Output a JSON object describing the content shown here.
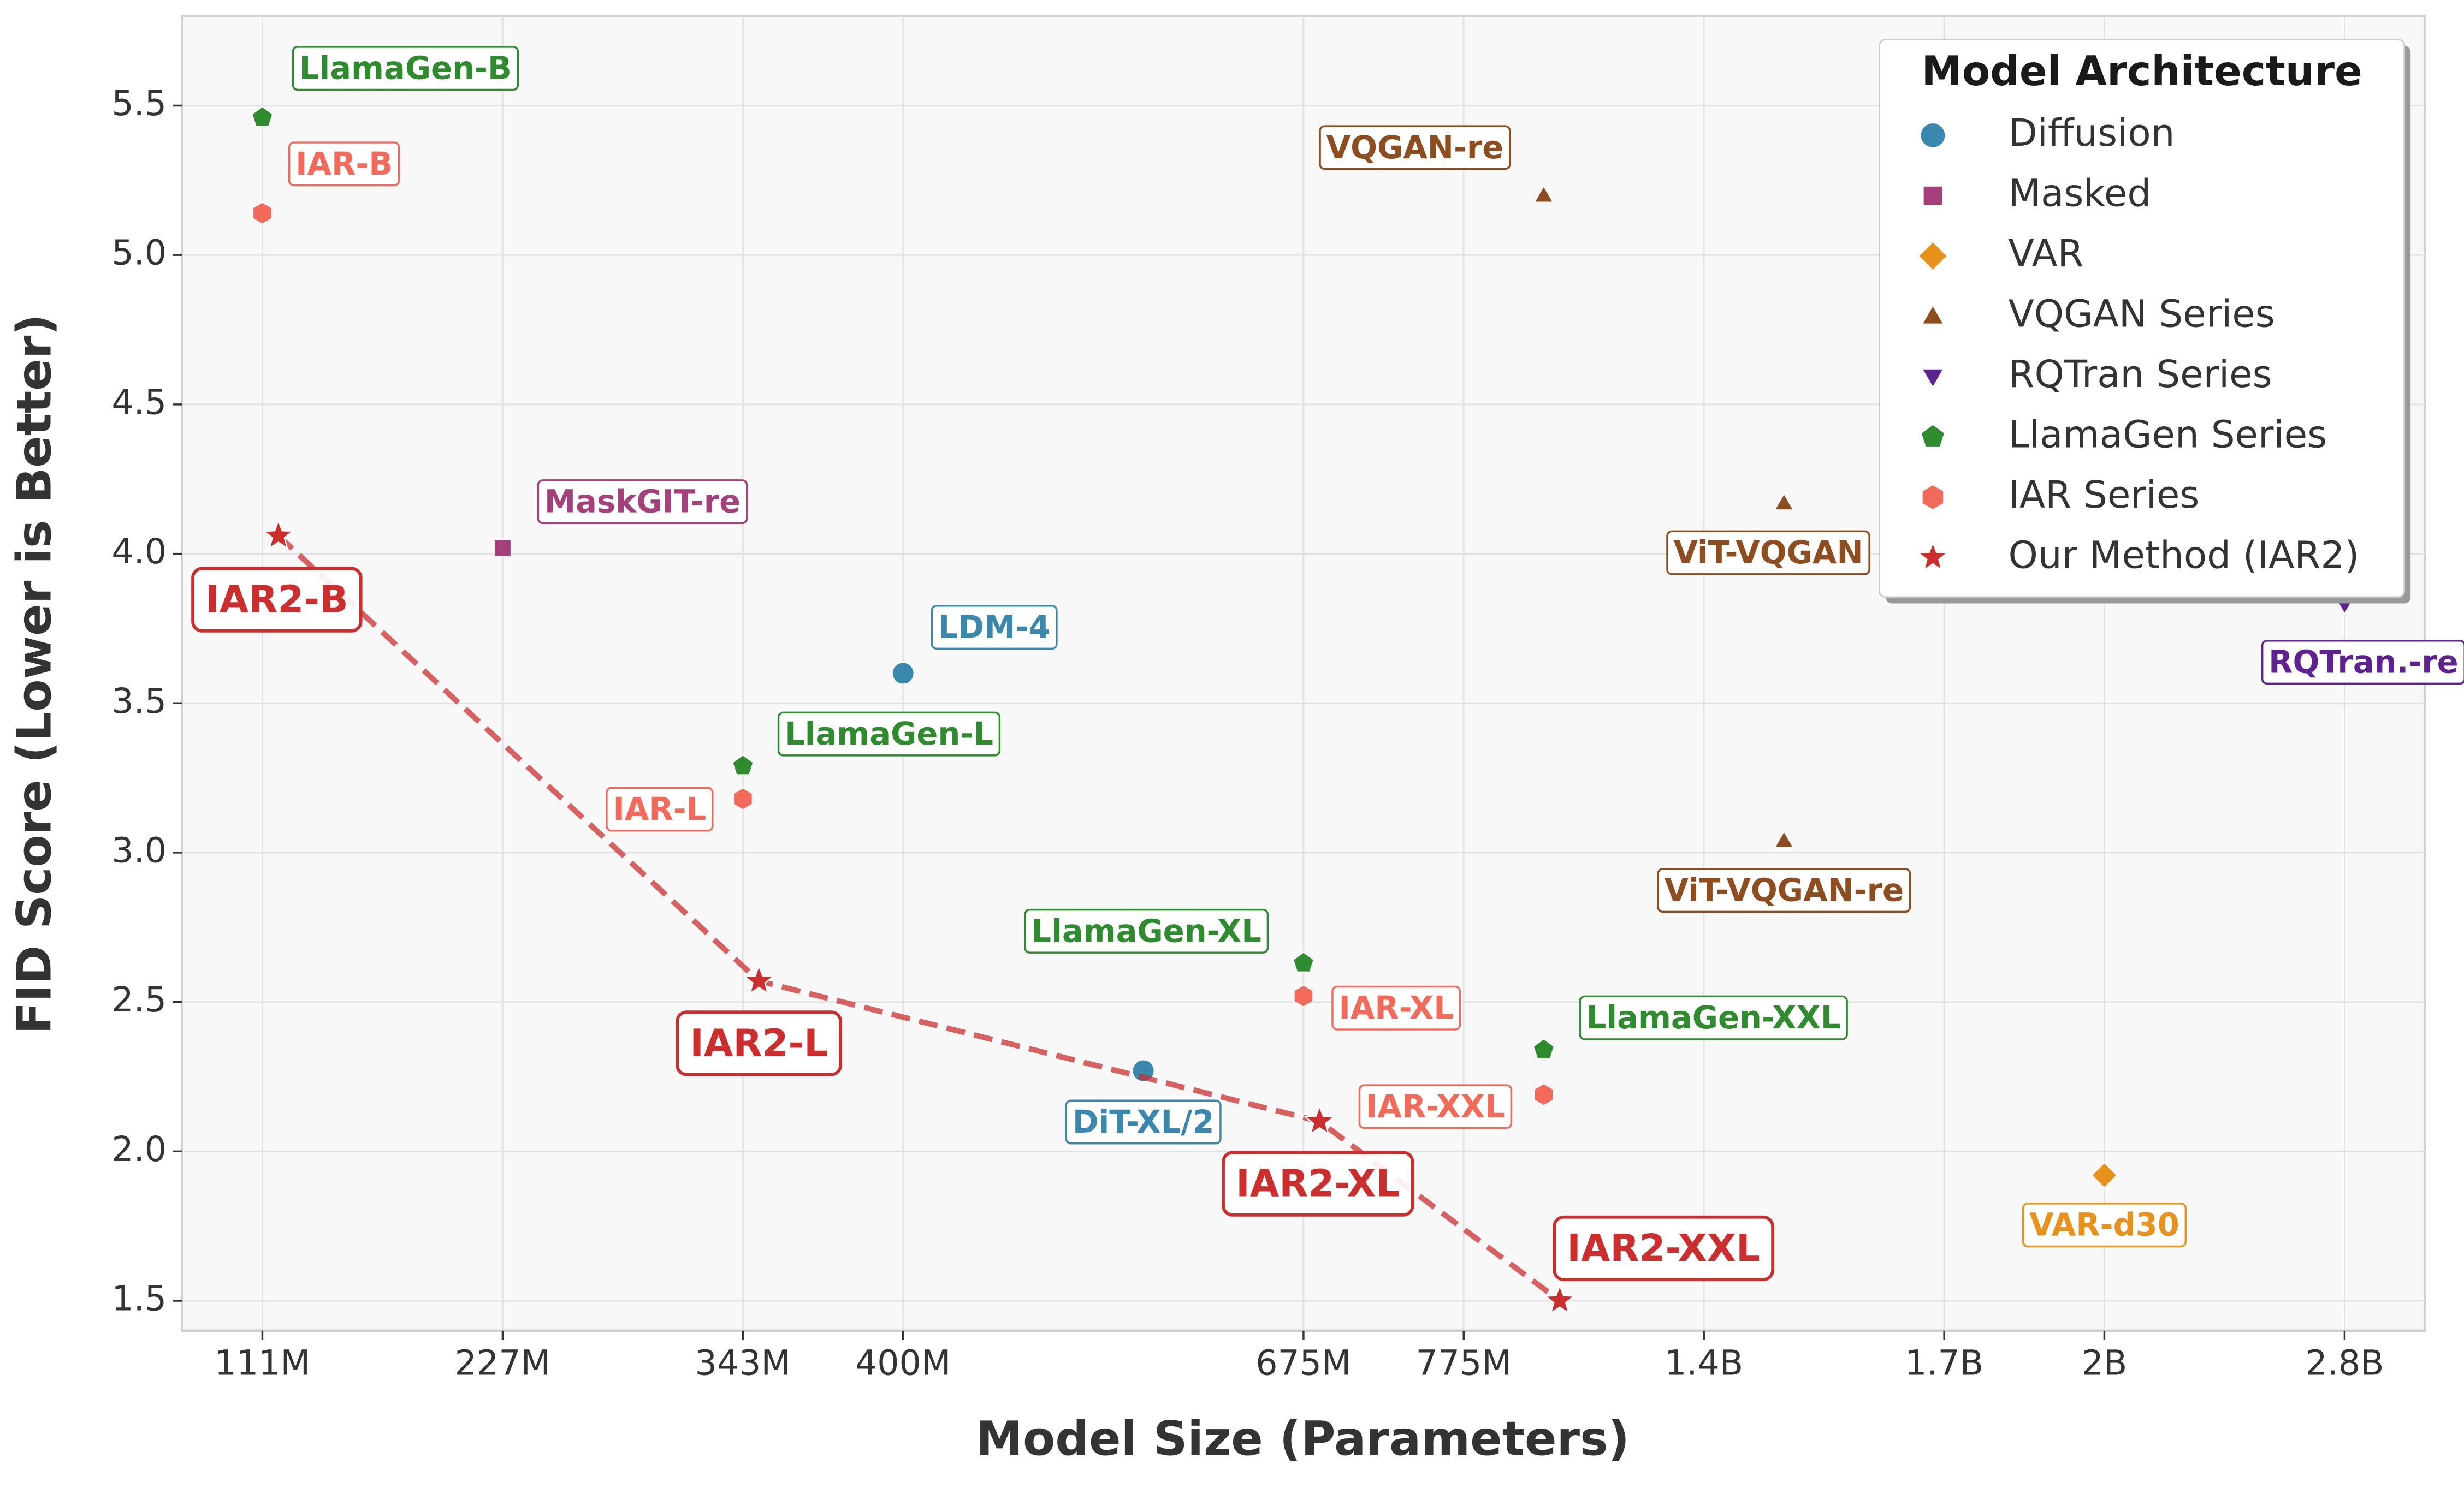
{
  "chart_data": {
    "type": "scatter",
    "xlabel": "Model Size (Parameters)",
    "ylabel": "FID Score (Lower is Better)",
    "xlim": [
      -0.5,
      13.5
    ],
    "ylim": [
      1.4,
      5.8
    ],
    "xticks": [
      {
        "value": 0,
        "label": "111M"
      },
      {
        "value": 1.5,
        "label": "227M"
      },
      {
        "value": 3,
        "label": "343M"
      },
      {
        "value": 4,
        "label": "400M"
      },
      {
        "value": 6.5,
        "label": "675M"
      },
      {
        "value": 7.5,
        "label": "775M"
      },
      {
        "value": 9,
        "label": "1.4B"
      },
      {
        "value": 10.5,
        "label": "1.7B"
      },
      {
        "value": 11.5,
        "label": "2B"
      },
      {
        "value": 13,
        "label": "2.8B"
      }
    ],
    "yticks": [
      {
        "value": 1.5,
        "label": "1.5"
      },
      {
        "value": 2,
        "label": "2.0"
      },
      {
        "value": 2.5,
        "label": "2.5"
      },
      {
        "value": 3,
        "label": "3.0"
      },
      {
        "value": 3.5,
        "label": "3.5"
      },
      {
        "value": 4,
        "label": "4.0"
      },
      {
        "value": 4.5,
        "label": "4.5"
      },
      {
        "value": 5,
        "label": "5.0"
      },
      {
        "value": 5.5,
        "label": "5.5"
      }
    ],
    "grid": true,
    "legend_title": "Model Architecture",
    "legend_position": "upper right",
    "series": [
      {
        "name": "Diffusion",
        "color": "#3a88ae",
        "marker": "circle",
        "x": [
          4,
          5.5
        ],
        "y": [
          3.6,
          2.27
        ],
        "labels": [
          "LDM-4",
          "DiT-XL/2"
        ]
      },
      {
        "name": "Masked",
        "color": "#a4417a",
        "marker": "square",
        "x": [
          1.5
        ],
        "y": [
          4.02
        ],
        "labels": [
          "MaskGIT-re"
        ]
      },
      {
        "name": "VAR",
        "color": "#e8921c",
        "marker": "diamond",
        "x": [
          11.5
        ],
        "y": [
          1.92
        ],
        "labels": [
          "VAR-d30"
        ]
      },
      {
        "name": "VQGAN Series",
        "color": "#8e4d1e",
        "marker": "triangle-up",
        "x": [
          8,
          9.5,
          9.5
        ],
        "y": [
          5.2,
          4.17,
          3.04
        ],
        "labels": [
          "VQGAN-re",
          "ViT-VQGAN",
          "ViT-VQGAN-re"
        ]
      },
      {
        "name": "RQTran Series",
        "color": "#5e2390",
        "marker": "triangle-down",
        "x": [
          13
        ],
        "y": [
          3.83
        ],
        "labels": [
          "RQTran.-re"
        ]
      },
      {
        "name": "LlamaGen Series",
        "color": "#2e8b2e",
        "marker": "pentagon",
        "x": [
          0,
          3,
          6.5,
          8
        ],
        "y": [
          5.46,
          3.29,
          2.63,
          2.34
        ],
        "labels": [
          "LlamaGen-B",
          "LlamaGen-L",
          "LlamaGen-XL",
          "LlamaGen-XXL"
        ]
      },
      {
        "name": "IAR Series",
        "color": "#f26a5a",
        "marker": "hexagon",
        "x": [
          0,
          3,
          6.5,
          8
        ],
        "y": [
          5.14,
          3.18,
          2.52,
          2.19
        ],
        "labels": [
          "IAR-B",
          "IAR-L",
          "IAR-XL",
          "IAR-XXL"
        ]
      },
      {
        "name": "Our Method (IAR2)",
        "color": "#cc2e2e",
        "marker": "star",
        "line": "dashed",
        "x": [
          0.1,
          3.1,
          6.6,
          8.1
        ],
        "y": [
          4.06,
          2.57,
          2.1,
          1.5
        ],
        "labels": [
          "IAR2-B",
          "IAR2-L",
          "IAR2-XL",
          "IAR2-XXL"
        ]
      }
    ]
  }
}
